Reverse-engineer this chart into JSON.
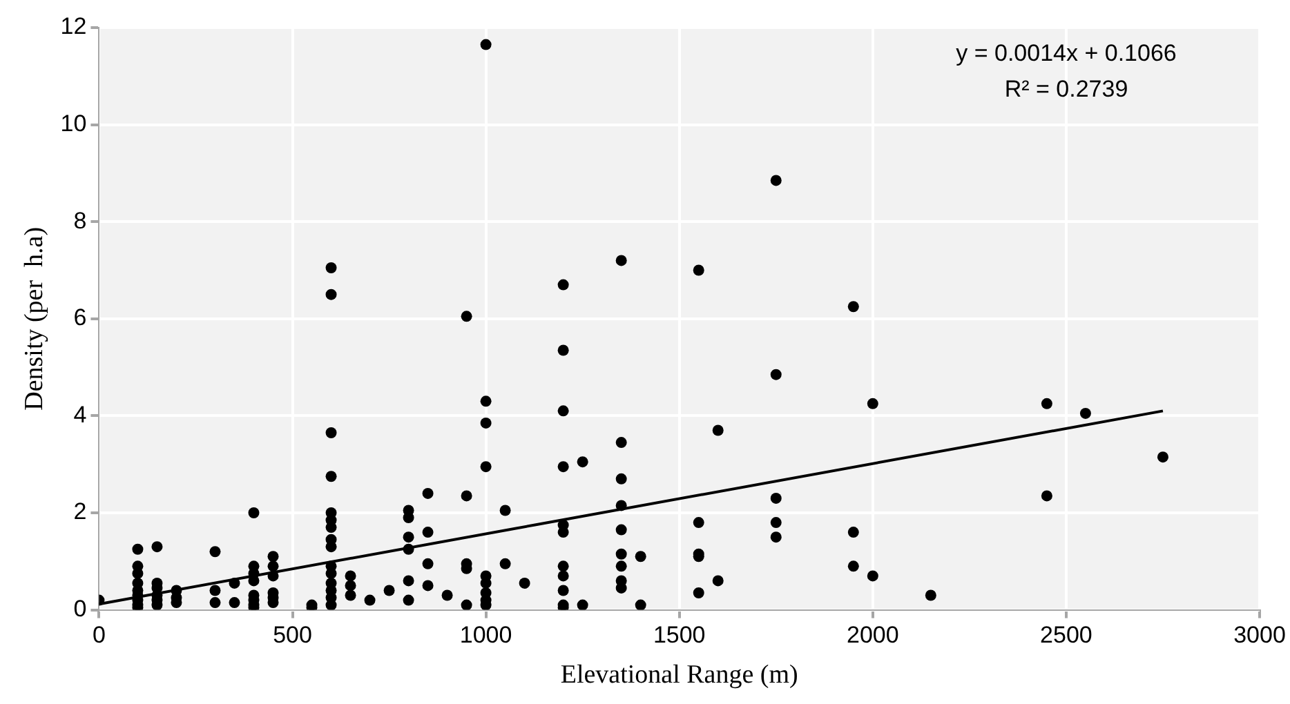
{
  "chart_data": {
    "type": "scatter",
    "xlabel": "Elevational Range (m)",
    "ylabel": "Density (per  h.a)",
    "annotations": [
      "y = 0.0014x + 0.1066",
      "R² = 0.2739"
    ],
    "xlim": [
      0,
      3000
    ],
    "xticks": [
      0,
      500,
      1000,
      1500,
      2000,
      2500,
      3000
    ],
    "ylim": [
      0,
      12
    ],
    "yticks": [
      0,
      2,
      4,
      6,
      8,
      10,
      12
    ],
    "grid": true,
    "legend": false,
    "marker": "circle",
    "series": [
      {
        "color": "#000000",
        "x": [
          0,
          100,
          100,
          100,
          100,
          100,
          100,
          100,
          100,
          100,
          150,
          150,
          150,
          150,
          150,
          150,
          200,
          200,
          200,
          300,
          300,
          300,
          350,
          350,
          400,
          400,
          400,
          400,
          400,
          400,
          400,
          400,
          450,
          450,
          450,
          450,
          450,
          450,
          550,
          550,
          600,
          600,
          600,
          600,
          600,
          600,
          600,
          600,
          600,
          600,
          600,
          600,
          600,
          600,
          600,
          650,
          650,
          650,
          700,
          750,
          800,
          800,
          800,
          800,
          800,
          800,
          850,
          850,
          850,
          850,
          900,
          950,
          950,
          950,
          950,
          950,
          1000,
          1000,
          1000,
          1000,
          1000,
          1000,
          1000,
          1000,
          1000,
          1050,
          1050,
          1100,
          1200,
          1200,
          1200,
          1200,
          1200,
          1200,
          1200,
          1200,
          1200,
          1200,
          1200,
          1250,
          1250,
          1350,
          1350,
          1350,
          1350,
          1350,
          1350,
          1350,
          1350,
          1350,
          1400,
          1400,
          1550,
          1550,
          1550,
          1550,
          1550,
          1600,
          1600,
          1750,
          1750,
          1750,
          1750,
          1750,
          1950,
          1950,
          1950,
          2000,
          2000,
          2150,
          2450,
          2450,
          2550,
          2750
        ],
        "values": [
          0.2,
          1.25,
          0.9,
          0.75,
          0.55,
          0.4,
          0.3,
          0.2,
          0.1,
          0.05,
          1.3,
          0.55,
          0.45,
          0.3,
          0.2,
          0.1,
          0.4,
          0.25,
          0.15,
          1.2,
          0.4,
          0.15,
          0.55,
          0.15,
          2.0,
          0.9,
          0.75,
          0.6,
          0.3,
          0.2,
          0.1,
          0.05,
          1.1,
          0.9,
          0.7,
          0.35,
          0.25,
          0.15,
          0.1,
          0.05,
          7.05,
          6.5,
          3.65,
          2.75,
          2.0,
          1.85,
          1.7,
          1.45,
          1.3,
          0.9,
          0.75,
          0.55,
          0.4,
          0.25,
          0.1,
          0.7,
          0.5,
          0.3,
          0.2,
          0.4,
          2.05,
          1.9,
          1.5,
          1.25,
          0.6,
          0.2,
          2.4,
          1.6,
          0.95,
          0.5,
          0.3,
          6.05,
          2.35,
          0.95,
          0.85,
          0.1,
          11.65,
          4.3,
          3.85,
          2.95,
          0.7,
          0.55,
          0.35,
          0.2,
          0.1,
          2.05,
          0.95,
          0.55,
          6.7,
          5.35,
          4.1,
          2.95,
          1.75,
          1.6,
          0.9,
          0.7,
          0.4,
          0.1,
          0.05,
          3.05,
          0.1,
          7.2,
          3.45,
          2.7,
          2.15,
          1.65,
          1.15,
          0.9,
          0.6,
          0.45,
          1.1,
          0.1,
          7.0,
          1.8,
          1.15,
          1.1,
          0.35,
          3.7,
          0.6,
          8.85,
          4.85,
          2.3,
          1.8,
          1.5,
          6.25,
          1.6,
          0.9,
          4.25,
          0.7,
          0.3,
          4.25,
          2.35,
          4.05,
          3.15
        ]
      },
      {
        "type": "line",
        "color": "#000000",
        "marker": "none",
        "x": [
          0,
          2750
        ],
        "values": [
          0.12,
          4.1
        ]
      }
    ]
  }
}
